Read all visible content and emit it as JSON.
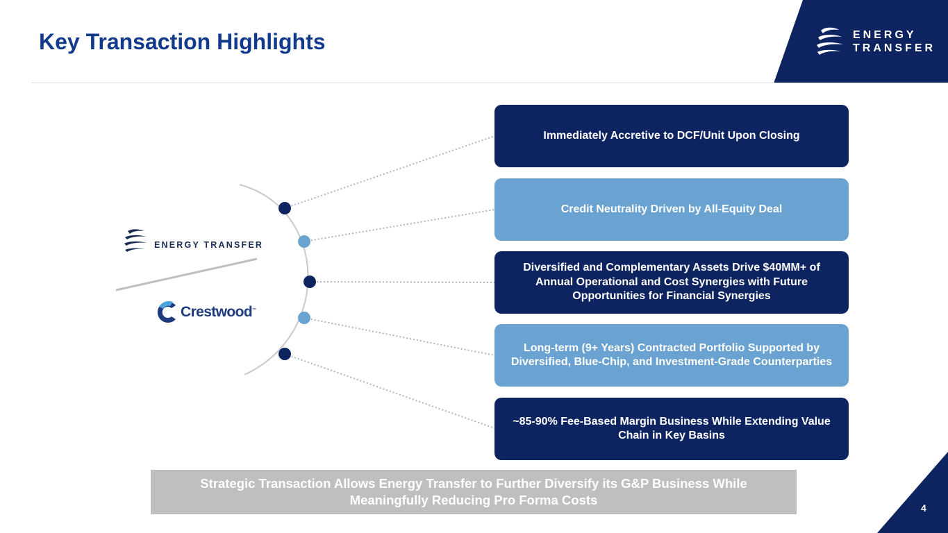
{
  "slide": {
    "title": "Key Transaction Highlights",
    "page_number": "4"
  },
  "brand": {
    "line1": "ENERGY",
    "line2": "TRANSFER",
    "color_navy": "#0e2460",
    "color_light": "#6aa3d2"
  },
  "logos": {
    "energy_transfer": "ENERGY TRANSFER",
    "crestwood": "Crestwood"
  },
  "highlights": [
    "Immediately Accretive to DCF/Unit Upon Closing",
    "Credit Neutrality Driven by All-Equity Deal",
    "Diversified and Complementary Assets Drive $40MM+ of Annual Operational and Cost Synergies with Future Opportunities for Financial Synergies",
    "Long-term (9+ Years) Contracted Portfolio Supported by Diversified, Blue-Chip, and Investment-Grade Counterparties",
    "~85-90% Fee-Based Margin Business While Extending Value Chain in Key Basins"
  ],
  "banner": {
    "line1": "Strategic Transaction Allows Energy Transfer to Further Diversify its G&P Business While",
    "line2": "Meaningfully Reducing Pro Forma Costs"
  }
}
